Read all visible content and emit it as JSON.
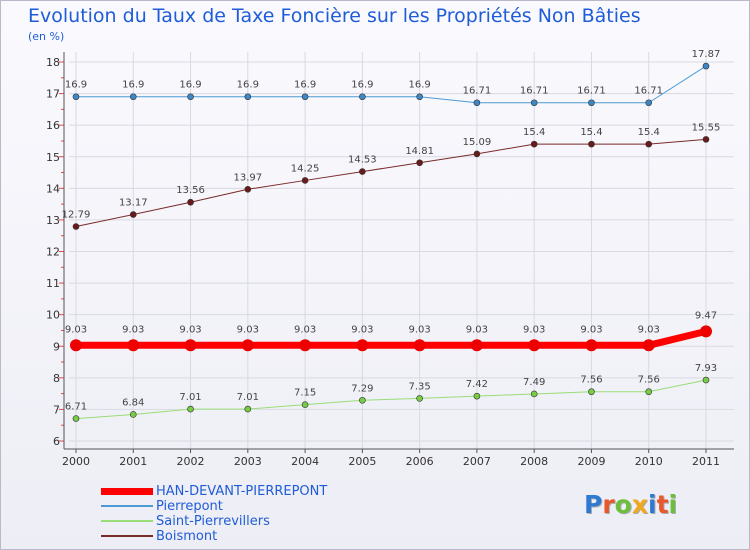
{
  "title": "Evolution du Taux de Taxe Foncière sur les Propriétés Non Bâties",
  "unit": "(en %)",
  "logo": {
    "text": "Proxiti",
    "colors": [
      "#2e79d4",
      "#e8582a",
      "#6cbf3b",
      "#f2a81d",
      "#2e79d4",
      "#e8582a",
      "#6cbf3b"
    ]
  },
  "chart_data": {
    "type": "line",
    "title": "Evolution du Taux de Taxe Foncière sur les Propriétés Non Bâties",
    "ylabel": "(en %)",
    "xlabel": "",
    "ylim": [
      6,
      18
    ],
    "yticks": [
      6,
      7,
      8,
      9,
      10,
      11,
      12,
      13,
      14,
      15,
      16,
      17,
      18
    ],
    "grid": true,
    "legend": "bottom-left",
    "x": [
      "2000",
      "2001",
      "2002",
      "2003",
      "2004",
      "2005",
      "2006",
      "2007",
      "2008",
      "2009",
      "2010",
      "2011"
    ],
    "series": [
      {
        "name": "Pierrepont",
        "color": "#4c9ad4",
        "dot": "#3f86c4",
        "width": 1,
        "values": [
          16.9,
          16.9,
          16.9,
          16.9,
          16.9,
          16.9,
          16.9,
          16.71,
          16.71,
          16.71,
          16.71,
          17.87
        ],
        "labels": [
          "16.9",
          "16.9",
          "16.9",
          "16.9",
          "16.9",
          "16.9",
          "16.9",
          "16.71",
          "16.71",
          "16.71",
          "16.71",
          "17.87"
        ]
      },
      {
        "name": "Boismont",
        "color": "#7a2a2a",
        "dot": "#6a1a1a",
        "width": 1,
        "values": [
          12.79,
          13.17,
          13.56,
          13.97,
          14.25,
          14.53,
          14.81,
          15.09,
          15.4,
          15.4,
          15.4,
          15.55
        ],
        "labels": [
          "12.79",
          "13.17",
          "13.56",
          "13.97",
          "14.25",
          "14.53",
          "14.81",
          "15.09",
          "15.4",
          "15.4",
          "15.4",
          "15.55"
        ]
      },
      {
        "name": "HAN-DEVANT-PIERREPONT",
        "color": "#ff0000",
        "dot": "#ee0000",
        "width": 7,
        "values": [
          9.03,
          9.03,
          9.03,
          9.03,
          9.03,
          9.03,
          9.03,
          9.03,
          9.03,
          9.03,
          9.03,
          9.47
        ],
        "labels": [
          "9.03",
          "9.03",
          "9.03",
          "9.03",
          "9.03",
          "9.03",
          "9.03",
          "9.03",
          "9.03",
          "9.03",
          "9.03",
          "9.47"
        ]
      },
      {
        "name": "Saint-Pierrevillers",
        "color": "#99dd77",
        "dot": "#77cc44",
        "width": 1,
        "values": [
          6.71,
          6.84,
          7.01,
          7.01,
          7.15,
          7.29,
          7.35,
          7.42,
          7.49,
          7.56,
          7.56,
          7.93
        ],
        "labels": [
          "6.71",
          "6.84",
          "7.01",
          "7.01",
          "7.15",
          "7.29",
          "7.35",
          "7.42",
          "7.49",
          "7.56",
          "7.56",
          "7.93"
        ]
      }
    ],
    "legend_entries": [
      {
        "name": "HAN-DEVANT-PIERREPONT",
        "color": "#ff0000",
        "width": 7
      },
      {
        "name": "Pierrepont",
        "color": "#4c9ad4",
        "width": 2
      },
      {
        "name": "Saint-Pierrevillers",
        "color": "#99dd77",
        "width": 2
      },
      {
        "name": "Boismont",
        "color": "#7a2a2a",
        "width": 2
      }
    ]
  }
}
